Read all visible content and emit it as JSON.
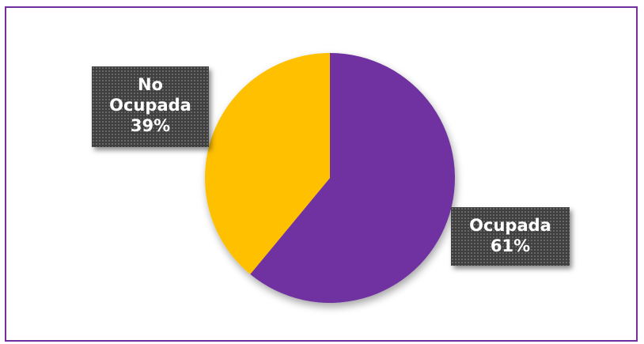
{
  "chart_data": {
    "type": "pie",
    "title": "",
    "slices": [
      {
        "label": "Ocupada",
        "value": 61,
        "color": "#7030a0",
        "label_lines": [
          "Ocupada",
          "61%"
        ]
      },
      {
        "label": "No Ocupada",
        "value": 39,
        "color": "#ffc000",
        "label_lines": [
          "No",
          "Ocupada",
          "39%"
        ]
      }
    ],
    "start_angle_deg": 0,
    "direction": "clockwise",
    "legend": "none",
    "data_labels": "outside-boxes"
  },
  "colors": {
    "frame_border": "#7030a0",
    "label_background": "#3f3f3f",
    "label_text": "#ffffff"
  }
}
